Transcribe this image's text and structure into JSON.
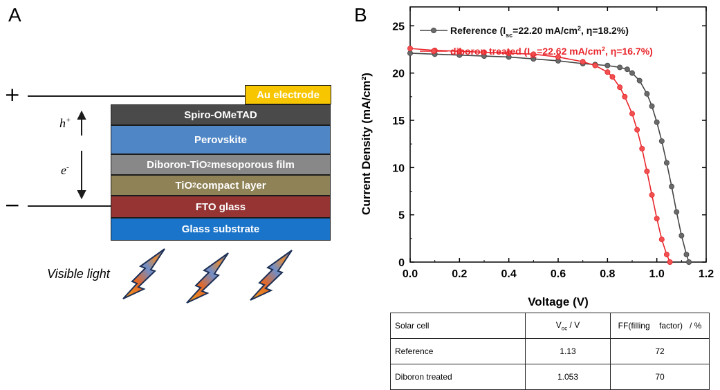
{
  "panel_a": {
    "label": "A",
    "plus_symbol": "+",
    "minus_symbol": "−",
    "hole_label": {
      "base": "h",
      "sup": "+"
    },
    "electron_label": {
      "base": "e",
      "sup": "-"
    },
    "visible_light_label": "Visible light",
    "layers": [
      {
        "pre": "Au electrode",
        "sub": "",
        "post": "",
        "color": "#f7c600"
      },
      {
        "pre": "Spiro-OMeTAD",
        "sub": "",
        "post": "",
        "color": "#4a4a4a"
      },
      {
        "pre": "Perovskite",
        "sub": "",
        "post": "",
        "color": "#4f86c6"
      },
      {
        "pre": "Diboron-TiO",
        "sub": "2",
        "post": " mesoporous film",
        "color": "#888888"
      },
      {
        "pre": "TiO",
        "sub": "2",
        "post": " compact layer",
        "color": "#8f8256"
      },
      {
        "pre": "FTO glass",
        "sub": "",
        "post": "",
        "color": "#963434"
      },
      {
        "pre": "Glass substrate",
        "sub": "",
        "post": "",
        "color": "#1a74c9"
      }
    ]
  },
  "panel_b": {
    "label": "B",
    "table": {
      "header": {
        "solar_cell": "Solar cell",
        "voc_base": "V",
        "voc_sub": "oc",
        "voc_rest": " / V",
        "ff": "FF(filling    factor)   / %"
      },
      "rows": [
        {
          "name": "Reference",
          "voc": "1.13",
          "ff": "72"
        },
        {
          "name": "Diboron treated",
          "voc": "1.053",
          "ff": "70"
        }
      ]
    }
  },
  "chart_data": {
    "type": "line",
    "xlabel": "Voltage (V)",
    "ylabel": "Current Density (mA/cm²)",
    "xlim": [
      0,
      1.2
    ],
    "ylim": [
      0,
      27
    ],
    "xticks": [
      "0.0",
      "0.2",
      "0.4",
      "0.6",
      "0.8",
      "1.0",
      "1.2"
    ],
    "yticks": [
      "0",
      "5",
      "10",
      "15",
      "20",
      "25"
    ],
    "grid": false,
    "legend_position": "top-left",
    "series": [
      {
        "name": "Reference (Isc=22.20 mA/cm2, η=18.2%)",
        "legend_parts": [
          "Reference (I",
          "sc",
          "=22.20 mA/cm",
          "2",
          ", η=18.2%)"
        ],
        "color": "#444444",
        "marker_fill": "#6a6a6a",
        "x": [
          0.0,
          0.1,
          0.2,
          0.3,
          0.4,
          0.5,
          0.6,
          0.7,
          0.75,
          0.8,
          0.85,
          0.88,
          0.9,
          0.93,
          0.96,
          0.98,
          1.0,
          1.02,
          1.04,
          1.06,
          1.08,
          1.1,
          1.12,
          1.13
        ],
        "y": [
          22.1,
          22.0,
          21.9,
          21.8,
          21.7,
          21.5,
          21.3,
          21.0,
          20.9,
          20.8,
          20.6,
          20.4,
          20.0,
          19.2,
          17.8,
          16.5,
          14.8,
          12.8,
          10.5,
          8.0,
          5.3,
          2.8,
          0.8,
          0.0
        ]
      },
      {
        "name": "diboron treated (Isc=22.62 mA/cm2, η=16.7%)",
        "legend_parts": [
          "diboron treated (I",
          "sc",
          "=22.62 mA/cm",
          "2",
          ", η=16.7%)"
        ],
        "color": "#e8242a",
        "marker_fill": "#f05050",
        "x": [
          0.0,
          0.1,
          0.2,
          0.3,
          0.4,
          0.5,
          0.6,
          0.7,
          0.75,
          0.8,
          0.82,
          0.85,
          0.87,
          0.9,
          0.92,
          0.94,
          0.96,
          0.98,
          1.0,
          1.02,
          1.04,
          1.053
        ],
        "y": [
          22.6,
          22.4,
          22.3,
          22.2,
          22.1,
          22.0,
          21.7,
          21.2,
          20.8,
          20.1,
          19.6,
          18.5,
          17.5,
          15.7,
          14.0,
          12.0,
          9.6,
          7.1,
          4.6,
          2.4,
          0.8,
          0.0
        ]
      }
    ]
  }
}
